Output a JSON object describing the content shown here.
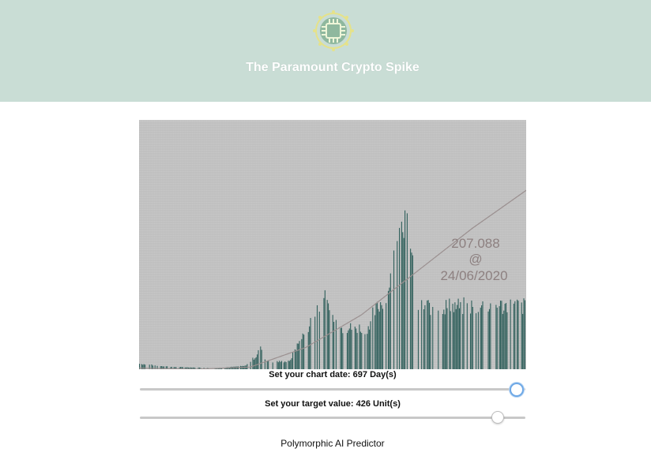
{
  "header": {
    "title": "The Paramount Crypto Spike",
    "logo_icon": "circuit-chip-logo-icon",
    "bg_color": "#c9ddd5"
  },
  "chart_data": {
    "type": "bar",
    "annotation": {
      "value": "207.088",
      "at": "@",
      "date": "24/06/2020"
    },
    "bar_color": "#2f5f5b",
    "trend_line_color": "#9a8f8f",
    "background_color": "#c6c6c6",
    "grid": true,
    "x_count_days": 697,
    "control_points": [
      [
        0,
        5
      ],
      [
        60,
        2
      ],
      [
        140,
        1
      ],
      [
        190,
        3
      ],
      [
        210,
        12
      ],
      [
        218,
        22
      ],
      [
        222,
        10
      ],
      [
        240,
        7
      ],
      [
        270,
        7
      ],
      [
        280,
        18
      ],
      [
        310,
        45
      ],
      [
        330,
        70
      ],
      [
        340,
        55
      ],
      [
        360,
        38
      ],
      [
        410,
        38
      ],
      [
        420,
        50
      ],
      [
        440,
        65
      ],
      [
        455,
        90
      ],
      [
        465,
        130
      ],
      [
        470,
        150
      ],
      [
        480,
        135
      ],
      [
        490,
        105
      ],
      [
        497,
        60
      ],
      [
        500,
        58
      ],
      [
        697,
        58
      ]
    ],
    "trend_points": [
      [
        0,
        1
      ],
      [
        100,
        0
      ],
      [
        200,
        2
      ],
      [
        300,
        20
      ],
      [
        400,
        50
      ],
      [
        500,
        90
      ],
      [
        600,
        130
      ],
      [
        697,
        165
      ]
    ],
    "ylim": [
      0,
      230
    ]
  },
  "controls": {
    "date_slider": {
      "label": "Set your chart date: 697 Day(s)",
      "value": 697,
      "max": 697
    },
    "target_slider": {
      "label": "Set your target value: 426 Unit(s)",
      "value": 426,
      "max": 470
    }
  },
  "footer": {
    "text": "Polymorphic AI Predictor"
  }
}
